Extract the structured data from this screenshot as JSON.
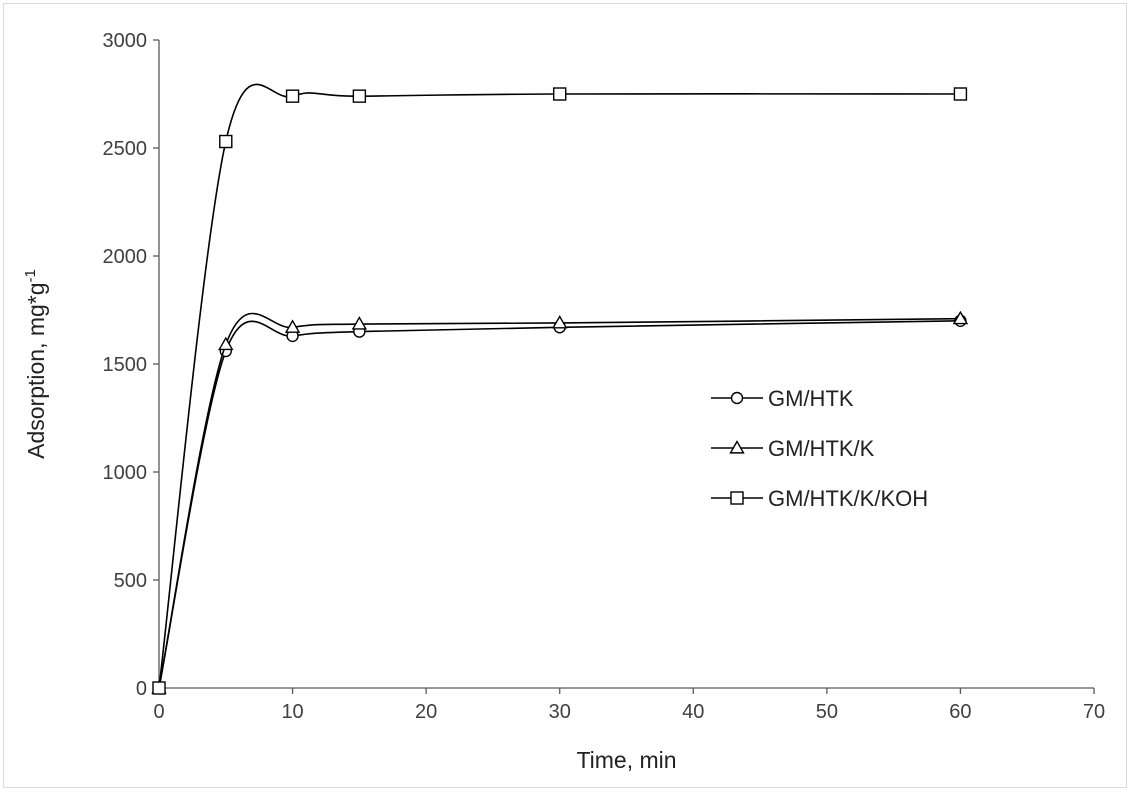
{
  "chart_data": {
    "type": "line",
    "title": "",
    "xlabel": "Time, min",
    "ylabel": "Adsorption, mg*g",
    "ylabel_sup": "-1",
    "xlim": [
      0,
      70
    ],
    "ylim": [
      0,
      3000
    ],
    "xticks": [
      0,
      10,
      20,
      30,
      40,
      50,
      60,
      70
    ],
    "yticks": [
      0,
      500,
      1000,
      1500,
      2000,
      2500,
      3000
    ],
    "grid": false,
    "legend_position": "center-right",
    "series": [
      {
        "name": "GM/HTK",
        "marker": "circle",
        "x": [
          0,
          5,
          10,
          15,
          30,
          60
        ],
        "y": [
          0,
          1560,
          1630,
          1650,
          1670,
          1700
        ]
      },
      {
        "name": "GM/HTK/K",
        "marker": "triangle",
        "x": [
          0,
          5,
          10,
          15,
          30,
          60
        ],
        "y": [
          0,
          1590,
          1670,
          1685,
          1690,
          1710
        ]
      },
      {
        "name": "GM/HTK/K/KOH",
        "marker": "square",
        "x": [
          0,
          5,
          10,
          15,
          30,
          60
        ],
        "y": [
          0,
          2530,
          2740,
          2740,
          2750,
          2750
        ]
      }
    ],
    "line_color": "#000000"
  }
}
